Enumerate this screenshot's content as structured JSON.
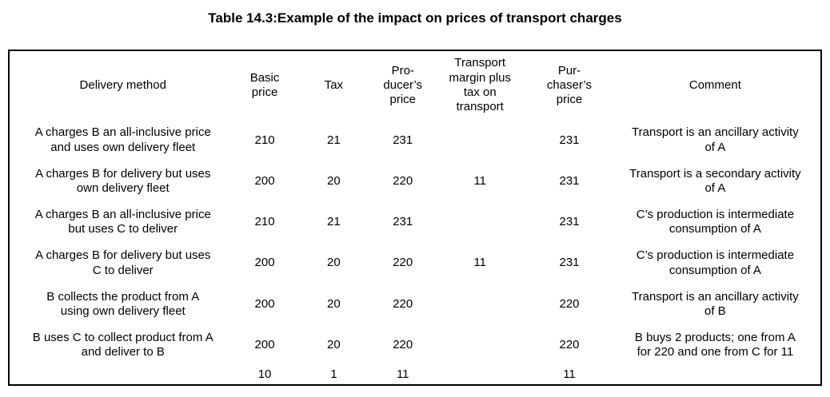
{
  "title": "Table 14.3:Example of the impact on prices of transport charges",
  "table": {
    "columns": [
      "Delivery method",
      "Basic\nprice",
      "Tax",
      "Pro-\nducer’s\nprice",
      "Transport\nmargin plus\ntax on\ntransport",
      "Pur-\nchaser’s\nprice",
      "Comment"
    ],
    "rows": [
      [
        "A charges B an all-inclusive price\nand uses own delivery fleet",
        "210",
        "21",
        "231",
        "",
        "231",
        "Transport is an ancillary activity\nof A"
      ],
      [
        "A charges B for delivery but uses\nown delivery fleet",
        "200",
        "20",
        "220",
        "11",
        "231",
        "Transport is a secondary activity\nof A"
      ],
      [
        "A charges B an all-inclusive price\nbut uses C to deliver",
        "210",
        "21",
        "231",
        "",
        "231",
        "C’s production is intermediate\nconsumption of A"
      ],
      [
        "A charges B for delivery but uses\nC to deliver",
        "200",
        "20",
        "220",
        "11",
        "231",
        "C’s production is intermediate\nconsumption of A"
      ],
      [
        "B collects the product from A\nusing own delivery fleet",
        "200",
        "20",
        "220",
        "",
        "220",
        "Transport is an ancillary activity\nof B"
      ],
      [
        "B uses C to collect product from A\nand deliver to B",
        "200",
        "20",
        "220",
        "",
        "220",
        "B buys 2 products; one from A\nfor 220 and one from C for 11"
      ],
      [
        "",
        "10",
        "1",
        "11",
        "",
        "11",
        ""
      ]
    ]
  },
  "colors": {
    "text": "#000000",
    "border": "#000000",
    "background": "#ffffff"
  }
}
